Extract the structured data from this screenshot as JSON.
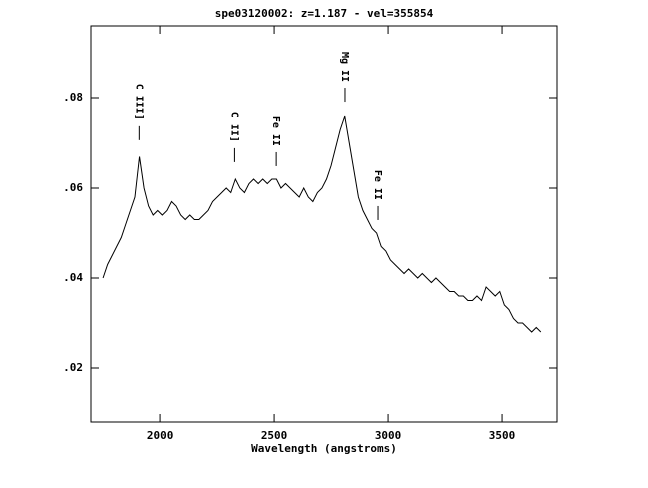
{
  "chart_data": {
    "type": "line",
    "title": "spe03120002: z=1.187 - vel=355854",
    "xlabel": "Wavelength (angstroms)",
    "color": "#000000",
    "x": [
      1750,
      1770,
      1790,
      1810,
      1830,
      1850,
      1870,
      1890,
      1910,
      1930,
      1950,
      1970,
      1990,
      2010,
      2030,
      2050,
      2070,
      2090,
      2110,
      2130,
      2150,
      2170,
      2190,
      2210,
      2230,
      2250,
      2270,
      2290,
      2310,
      2330,
      2350,
      2370,
      2390,
      2410,
      2430,
      2450,
      2470,
      2490,
      2510,
      2530,
      2550,
      2570,
      2590,
      2610,
      2630,
      2650,
      2670,
      2690,
      2710,
      2730,
      2750,
      2770,
      2790,
      2810,
      2830,
      2850,
      2870,
      2890,
      2910,
      2930,
      2950,
      2970,
      2990,
      3010,
      3030,
      3050,
      3070,
      3090,
      3110,
      3130,
      3150,
      3170,
      3190,
      3210,
      3230,
      3250,
      3270,
      3290,
      3310,
      3330,
      3350,
      3370,
      3390,
      3410,
      3430,
      3450,
      3470,
      3490,
      3510,
      3530,
      3550,
      3570,
      3590,
      3610,
      3630,
      3650,
      3670
    ],
    "values": [
      0.04,
      0.043,
      0.045,
      0.047,
      0.049,
      0.052,
      0.055,
      0.058,
      0.067,
      0.06,
      0.056,
      0.054,
      0.055,
      0.054,
      0.055,
      0.057,
      0.056,
      0.054,
      0.053,
      0.054,
      0.053,
      0.053,
      0.054,
      0.055,
      0.057,
      0.058,
      0.059,
      0.06,
      0.059,
      0.062,
      0.06,
      0.059,
      0.061,
      0.062,
      0.061,
      0.062,
      0.061,
      0.062,
      0.062,
      0.06,
      0.061,
      0.06,
      0.059,
      0.058,
      0.06,
      0.058,
      0.057,
      0.059,
      0.06,
      0.062,
      0.065,
      0.069,
      0.073,
      0.076,
      0.07,
      0.064,
      0.058,
      0.055,
      0.053,
      0.051,
      0.05,
      0.047,
      0.046,
      0.044,
      0.043,
      0.042,
      0.041,
      0.042,
      0.041,
      0.04,
      0.041,
      0.04,
      0.039,
      0.04,
      0.039,
      0.038,
      0.037,
      0.037,
      0.036,
      0.036,
      0.035,
      0.035,
      0.036,
      0.035,
      0.038,
      0.037,
      0.036,
      0.037,
      0.034,
      0.033,
      0.031,
      0.03,
      0.03,
      0.029,
      0.028,
      0.029,
      0.028
    ],
    "xlim": [
      1697,
      3741
    ],
    "xticks": [
      2000,
      2500,
      3000,
      3500
    ],
    "ylim": [
      0.008,
      0.096
    ],
    "yticks": [
      {
        "value": 0.02,
        "label": ".02"
      },
      {
        "value": 0.04,
        "label": ".04"
      },
      {
        "value": 0.06,
        "label": ".06"
      },
      {
        "value": 0.08,
        "label": ".08"
      }
    ],
    "annotations": [
      {
        "text": "C III]",
        "x": 1909,
        "y": 0.0707
      },
      {
        "text": "C II]",
        "x": 2326,
        "y": 0.0658
      },
      {
        "text": "Fe II",
        "x": 2509,
        "y": 0.0649
      },
      {
        "text": "Mg II",
        "x": 2811,
        "y": 0.0791
      },
      {
        "text": "Fe II",
        "x": 2956,
        "y": 0.0529
      }
    ]
  }
}
